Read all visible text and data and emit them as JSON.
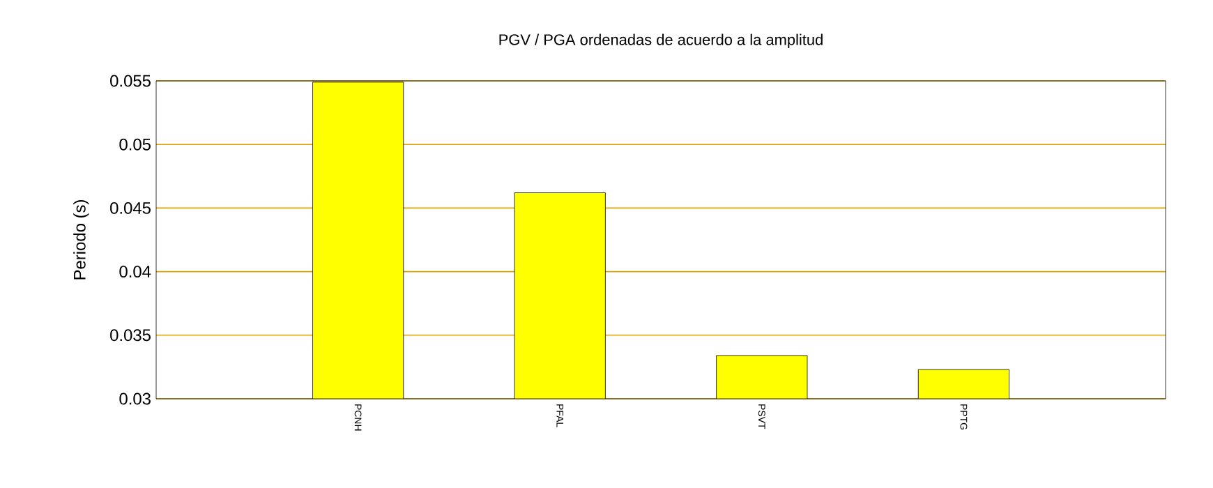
{
  "chart_data": {
    "type": "bar",
    "title": "PGV / PGA ordenadas de acuerdo a la amplitud",
    "ylabel": "Periodo (s)",
    "categories": [
      "PCNH",
      "PFAL",
      "PSVT",
      "PPTG"
    ],
    "values": [
      0.0549,
      0.0462,
      0.0334,
      0.0323
    ],
    "color": "#ffff00",
    "ylim": [
      0.03,
      0.055
    ],
    "yticks": [
      0.03,
      0.035,
      0.04,
      0.045,
      0.05,
      0.055
    ],
    "grid": "y"
  }
}
